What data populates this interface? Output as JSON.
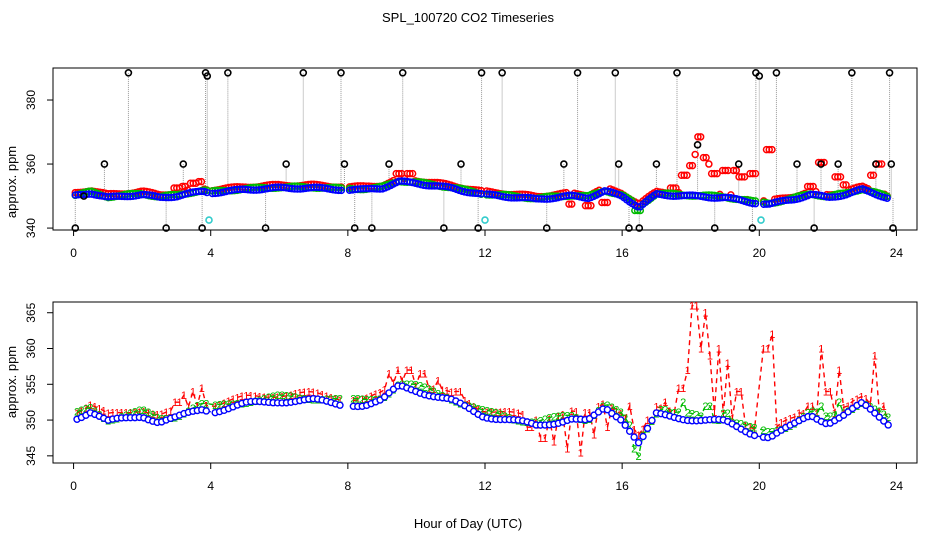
{
  "figure": {
    "title": "SPL_100720  CO2 Timeseries",
    "xlabel": "Hour of Day (UTC)"
  },
  "chart_data": [
    {
      "type": "scatter",
      "panel": "top",
      "ylabel": "approx. ppm",
      "xlim": [
        -0.6,
        24.6
      ],
      "ylim": [
        339.4,
        390.0
      ],
      "xticks": [
        0,
        4,
        8,
        12,
        16,
        20,
        24
      ],
      "yticks": [
        340,
        360,
        380
      ],
      "series": [
        {
          "name": "black",
          "color": "#000000",
          "marker": "circle"
        },
        {
          "name": "red",
          "color": "#ff0000",
          "marker": "circle"
        },
        {
          "name": "green",
          "color": "#00bb00",
          "marker": "circle"
        },
        {
          "name": "blue",
          "color": "#0000ff",
          "marker": "circle"
        },
        {
          "name": "cyan",
          "color": "#33cccc",
          "marker": "circle"
        }
      ],
      "baseline": [
        [
          0,
          350.5
        ],
        [
          0.5,
          351.5
        ],
        [
          1,
          350
        ],
        [
          1.5,
          350.5
        ],
        [
          2,
          351
        ],
        [
          2.5,
          350
        ],
        [
          3,
          350.5
        ],
        [
          3.5,
          351.5
        ],
        [
          3.8,
          352
        ],
        [
          4,
          351.5
        ],
        [
          4.5,
          352
        ],
        [
          5,
          352.5
        ],
        [
          6,
          353
        ],
        [
          7,
          353
        ],
        [
          7.9,
          352.5
        ],
        [
          8.5,
          352.5
        ],
        [
          9,
          353
        ],
        [
          9.5,
          355
        ],
        [
          10,
          354.5
        ],
        [
          11,
          353
        ],
        [
          11.9,
          351
        ],
        [
          12.5,
          350.5
        ],
        [
          13,
          350
        ],
        [
          13.5,
          349.5
        ],
        [
          14,
          350
        ],
        [
          14.5,
          350.5
        ],
        [
          15,
          350
        ],
        [
          15.5,
          352
        ],
        [
          16,
          350.5
        ],
        [
          16.5,
          347
        ],
        [
          17,
          351
        ],
        [
          18,
          350.5
        ],
        [
          19,
          350
        ],
        [
          19.8,
          348.5
        ],
        [
          20.3,
          348
        ],
        [
          21,
          349.5
        ],
        [
          21.5,
          351
        ],
        [
          22,
          350
        ],
        [
          22.5,
          351
        ],
        [
          23,
          352.5
        ],
        [
          23.6,
          350.5
        ],
        [
          24,
          349
        ]
      ],
      "red_deviations": [
        [
          3,
          352.5
        ],
        [
          3.2,
          353
        ],
        [
          3.5,
          354
        ],
        [
          3.7,
          354.5
        ],
        [
          9.5,
          357
        ],
        [
          9.8,
          357
        ],
        [
          14.5,
          347.5
        ],
        [
          15,
          347
        ],
        [
          15.5,
          348
        ],
        [
          17.5,
          352.5
        ],
        [
          17.8,
          356.5
        ],
        [
          18,
          359.5
        ],
        [
          18.1,
          363
        ],
        [
          18.2,
          368.5
        ],
        [
          18.4,
          362
        ],
        [
          18.5,
          360
        ],
        [
          18.7,
          357
        ],
        [
          19,
          358
        ],
        [
          19.3,
          358
        ],
        [
          19.5,
          356
        ],
        [
          19.8,
          357
        ],
        [
          20,
          352
        ],
        [
          20.3,
          364.5
        ],
        [
          21.5,
          353
        ],
        [
          21.8,
          360.5
        ],
        [
          22.3,
          356
        ],
        [
          22.5,
          353.5
        ],
        [
          23.3,
          356.5
        ],
        [
          23.5,
          360
        ],
        [
          23.8,
          350
        ]
      ],
      "cyan_points": [
        [
          3.95,
          342.5
        ],
        [
          12,
          342.5
        ],
        [
          20.05,
          342.5
        ]
      ],
      "black_spikes": [
        [
          0.05,
          340
        ],
        [
          0.3,
          350
        ],
        [
          0.9,
          360
        ],
        [
          1.6,
          388.5
        ],
        [
          2.7,
          340
        ],
        [
          3.2,
          360
        ],
        [
          3.75,
          340
        ],
        [
          3.85,
          388.5
        ],
        [
          3.9,
          387.5
        ],
        [
          4.5,
          388.5
        ],
        [
          5.6,
          340
        ],
        [
          6.2,
          360
        ],
        [
          6.7,
          388.5
        ],
        [
          7.8,
          388.5
        ],
        [
          7.9,
          360
        ],
        [
          8.2,
          340
        ],
        [
          8.7,
          340
        ],
        [
          9.2,
          360
        ],
        [
          9.6,
          388.5
        ],
        [
          10.8,
          340
        ],
        [
          11.3,
          360
        ],
        [
          11.8,
          340
        ],
        [
          11.9,
          388.5
        ],
        [
          12.5,
          388.5
        ],
        [
          13.8,
          340
        ],
        [
          14.3,
          360
        ],
        [
          14.7,
          388.5
        ],
        [
          15.8,
          388.5
        ],
        [
          15.9,
          360
        ],
        [
          16.2,
          340
        ],
        [
          16.5,
          340
        ],
        [
          17.0,
          360
        ],
        [
          17.6,
          388.5
        ],
        [
          18.2,
          366
        ],
        [
          18.7,
          340
        ],
        [
          19.4,
          360
        ],
        [
          19.8,
          340
        ],
        [
          19.9,
          388.5
        ],
        [
          20.0,
          387.5
        ],
        [
          20.5,
          388.5
        ],
        [
          21.1,
          360
        ],
        [
          21.6,
          340
        ],
        [
          21.8,
          360
        ],
        [
          22.3,
          360
        ],
        [
          22.7,
          388.5
        ],
        [
          23.4,
          360
        ],
        [
          23.8,
          388.5
        ],
        [
          23.85,
          360
        ],
        [
          23.9,
          340
        ]
      ]
    },
    {
      "type": "line",
      "panel": "bottom",
      "ylabel": "approx. ppm",
      "xlim": [
        -0.6,
        24.6
      ],
      "ylim": [
        344.0,
        366.5
      ],
      "xticks": [
        0,
        4,
        8,
        12,
        16,
        20,
        24
      ],
      "yticks": [
        345,
        350,
        355,
        360,
        365
      ],
      "series": [
        {
          "name": "1",
          "color": "#ff0000",
          "style": "dashed",
          "label_char": "1"
        },
        {
          "name": "2",
          "color": "#00bb00",
          "style": "dashed",
          "label_char": "2"
        },
        {
          "name": "3",
          "color": "#0000ff",
          "style": "dashed",
          "label_char": "3"
        }
      ],
      "red_overrides": [
        [
          3,
          352.5
        ],
        [
          3.2,
          353.5
        ],
        [
          3.5,
          354
        ],
        [
          3.7,
          354.5
        ],
        [
          9.2,
          356.5
        ],
        [
          9.5,
          357
        ],
        [
          9.8,
          357
        ],
        [
          10.2,
          356.5
        ],
        [
          10.6,
          355.5
        ],
        [
          11.2,
          354
        ],
        [
          13.3,
          349
        ],
        [
          13.7,
          347.5
        ],
        [
          14,
          347
        ],
        [
          14.4,
          346
        ],
        [
          14.8,
          345.5
        ],
        [
          15.2,
          348
        ],
        [
          15.6,
          349
        ],
        [
          16.2,
          352
        ],
        [
          16.8,
          350
        ],
        [
          17.3,
          352.5
        ],
        [
          17.7,
          354.5
        ],
        [
          17.9,
          357
        ],
        [
          18.1,
          366
        ],
        [
          18.25,
          360
        ],
        [
          18.4,
          365
        ],
        [
          18.6,
          359
        ],
        [
          18.8,
          360
        ],
        [
          19.1,
          358
        ],
        [
          19.4,
          354
        ],
        [
          19.7,
          349
        ],
        [
          20,
          349
        ],
        [
          20.2,
          360
        ],
        [
          20.35,
          362
        ],
        [
          20.5,
          349
        ],
        [
          21.2,
          351
        ],
        [
          21.5,
          352
        ],
        [
          21.8,
          360
        ],
        [
          22.0,
          354
        ],
        [
          22.3,
          357
        ],
        [
          22.6,
          352
        ],
        [
          23.1,
          353
        ],
        [
          23.4,
          359
        ],
        [
          23.6,
          352
        ],
        [
          23.8,
          349.5
        ]
      ],
      "green_overrides": [
        [
          16.4,
          346
        ],
        [
          16.5,
          345
        ],
        [
          17.2,
          351.5
        ],
        [
          17.8,
          352.5
        ],
        [
          18.5,
          352
        ],
        [
          19,
          351
        ],
        [
          21.8,
          352
        ],
        [
          22.3,
          352.5
        ]
      ]
    }
  ]
}
